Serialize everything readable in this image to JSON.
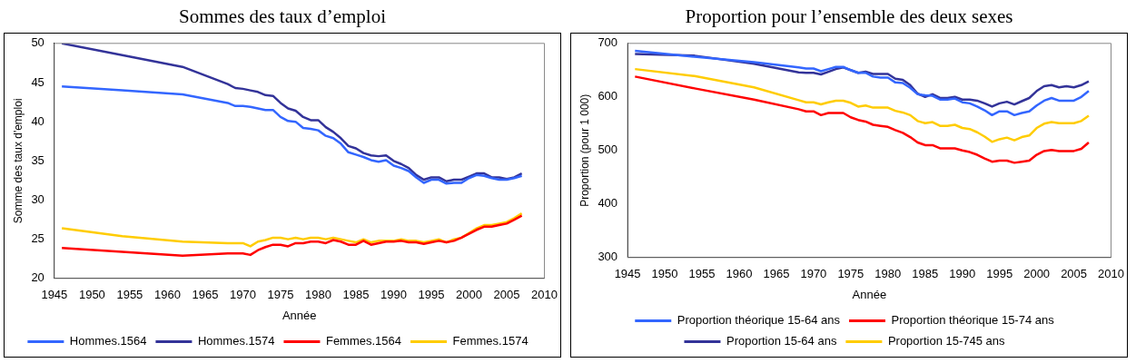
{
  "chart_data": [
    {
      "type": "line",
      "title": "Sommes des taux d’emploi",
      "xlabel": "Année",
      "ylabel": "Somme des taux d'emploi",
      "x": [
        1946,
        1954,
        1962,
        1968,
        1969,
        1970,
        1971,
        1972,
        1973,
        1974,
        1975,
        1976,
        1977,
        1978,
        1979,
        1980,
        1981,
        1982,
        1983,
        1984,
        1985,
        1986,
        1987,
        1988,
        1989,
        1990,
        1991,
        1992,
        1993,
        1994,
        1995,
        1996,
        1997,
        1998,
        1999,
        2000,
        2001,
        2002,
        2003,
        2004,
        2005,
        2006,
        2007
      ],
      "series": [
        {
          "name": "Hommes.1564",
          "color": "#3366ff",
          "values": [
            44.5,
            44.0,
            43.5,
            42.4,
            42.0,
            42.0,
            41.9,
            41.7,
            41.5,
            41.5,
            40.6,
            40.1,
            40.0,
            39.2,
            39.1,
            38.9,
            38.2,
            37.9,
            37.2,
            36.1,
            35.8,
            35.5,
            35.1,
            34.9,
            35.1,
            34.4,
            34.1,
            33.7,
            32.9,
            32.2,
            32.6,
            32.6,
            32.1,
            32.2,
            32.2,
            32.8,
            33.2,
            33.1,
            32.8,
            32.6,
            32.6,
            32.8,
            33.1
          ]
        },
        {
          "name": "Hommes.1574",
          "color": "#333399",
          "values": [
            50.0,
            48.5,
            47.0,
            44.8,
            44.3,
            44.2,
            44.0,
            43.8,
            43.4,
            43.3,
            42.4,
            41.7,
            41.4,
            40.6,
            40.2,
            40.2,
            39.3,
            38.7,
            37.9,
            36.9,
            36.6,
            36.0,
            35.7,
            35.6,
            35.7,
            35.0,
            34.6,
            34.1,
            33.2,
            32.6,
            32.9,
            32.9,
            32.4,
            32.6,
            32.6,
            33.0,
            33.4,
            33.4,
            32.9,
            32.9,
            32.7,
            32.9,
            33.4
          ]
        },
        {
          "name": "Femmes.1564",
          "color": "#ff0000",
          "values": [
            23.9,
            23.4,
            22.9,
            23.2,
            23.2,
            23.2,
            23.0,
            23.6,
            24.0,
            24.3,
            24.3,
            24.1,
            24.5,
            24.5,
            24.7,
            24.7,
            24.5,
            24.9,
            24.7,
            24.3,
            24.3,
            24.8,
            24.3,
            24.5,
            24.7,
            24.7,
            24.8,
            24.6,
            24.6,
            24.4,
            24.6,
            24.8,
            24.6,
            24.8,
            25.2,
            25.7,
            26.2,
            26.6,
            26.6,
            26.8,
            27.0,
            27.5,
            28.0
          ]
        },
        {
          "name": "Femmes.1574",
          "color": "#ffcc00",
          "values": [
            26.4,
            25.4,
            24.7,
            24.5,
            24.5,
            24.5,
            24.1,
            24.7,
            24.9,
            25.2,
            25.2,
            25.0,
            25.2,
            25.0,
            25.2,
            25.2,
            25.0,
            25.2,
            25.0,
            24.8,
            24.6,
            25.0,
            24.6,
            24.8,
            24.8,
            24.8,
            25.0,
            24.8,
            24.8,
            24.6,
            24.8,
            25.0,
            24.6,
            25.0,
            25.2,
            25.8,
            26.4,
            26.8,
            26.8,
            27.0,
            27.2,
            27.7,
            28.3
          ]
        }
      ],
      "xlim": [
        1945,
        2010
      ],
      "xticks": [
        1945,
        1950,
        1955,
        1960,
        1965,
        1970,
        1975,
        1980,
        1985,
        1990,
        1995,
        2000,
        2005,
        2010
      ],
      "ylim": [
        20,
        50
      ],
      "yticks": [
        20,
        25,
        30,
        35,
        40,
        45,
        50
      ],
      "grid": false,
      "legend": "bottom",
      "marker": "none",
      "line_style": "solid"
    },
    {
      "type": "line",
      "title": "Proportion pour l’ensemble des deux sexes",
      "xlabel": "Année",
      "ylabel": "Proportion (pour 1 000)",
      "x": [
        1946,
        1954,
        1962,
        1968,
        1969,
        1970,
        1971,
        1972,
        1973,
        1974,
        1975,
        1976,
        1977,
        1978,
        1979,
        1980,
        1981,
        1982,
        1983,
        1984,
        1985,
        1986,
        1987,
        1988,
        1989,
        1990,
        1991,
        1992,
        1993,
        1994,
        1995,
        1996,
        1997,
        1998,
        1999,
        2000,
        2001,
        2002,
        2003,
        2004,
        2005,
        2006,
        2007
      ],
      "series": [
        {
          "name": "Proportion théorique 15-64 ans",
          "color": "#3366ff",
          "values": [
            686,
            675,
            665,
            655,
            653,
            653,
            648,
            652,
            656,
            656,
            650,
            645,
            645,
            638,
            636,
            636,
            627,
            626,
            617,
            605,
            603,
            602,
            595,
            595,
            597,
            590,
            588,
            582,
            575,
            566,
            573,
            573,
            566,
            570,
            573,
            584,
            593,
            598,
            593,
            593,
            593,
            600,
            611
          ]
        },
        {
          "name": "Proportion théorique 15-74 ans",
          "color": "#ff0000",
          "values": [
            638,
            616,
            595,
            577,
            573,
            573,
            566,
            570,
            570,
            570,
            562,
            557,
            554,
            548,
            546,
            544,
            538,
            533,
            525,
            515,
            510,
            510,
            504,
            504,
            504,
            500,
            497,
            492,
            485,
            479,
            481,
            481,
            477,
            479,
            481,
            492,
            499,
            501,
            499,
            499,
            499,
            503,
            515
          ]
        },
        {
          "name": "Proportion 15-64 ans",
          "color": "#333399",
          "values": [
            680,
            677,
            662,
            646,
            645,
            645,
            642,
            647,
            652,
            655,
            650,
            645,
            647,
            643,
            643,
            643,
            634,
            632,
            622,
            606,
            600,
            605,
            598,
            598,
            600,
            595,
            595,
            593,
            588,
            582,
            588,
            591,
            586,
            592,
            598,
            611,
            620,
            622,
            618,
            620,
            618,
            622,
            629
          ]
        },
        {
          "name": "Proportion 15-745 ans",
          "color": "#ffcc00",
          "values": [
            652,
            639,
            618,
            594,
            590,
            590,
            586,
            590,
            593,
            593,
            589,
            582,
            584,
            580,
            580,
            580,
            574,
            571,
            566,
            555,
            551,
            553,
            546,
            546,
            548,
            542,
            540,
            534,
            526,
            516,
            521,
            524,
            519,
            525,
            528,
            542,
            550,
            553,
            551,
            551,
            551,
            555,
            565
          ]
        }
      ],
      "xlim": [
        1945,
        2010
      ],
      "xticks": [
        1945,
        1950,
        1955,
        1960,
        1965,
        1970,
        1975,
        1980,
        1985,
        1990,
        1995,
        2000,
        2005,
        2010
      ],
      "ylim": [
        300,
        700
      ],
      "yticks": [
        300,
        400,
        500,
        600,
        700
      ],
      "grid": false,
      "legend": "bottom",
      "marker": "none",
      "line_style": "solid"
    }
  ]
}
